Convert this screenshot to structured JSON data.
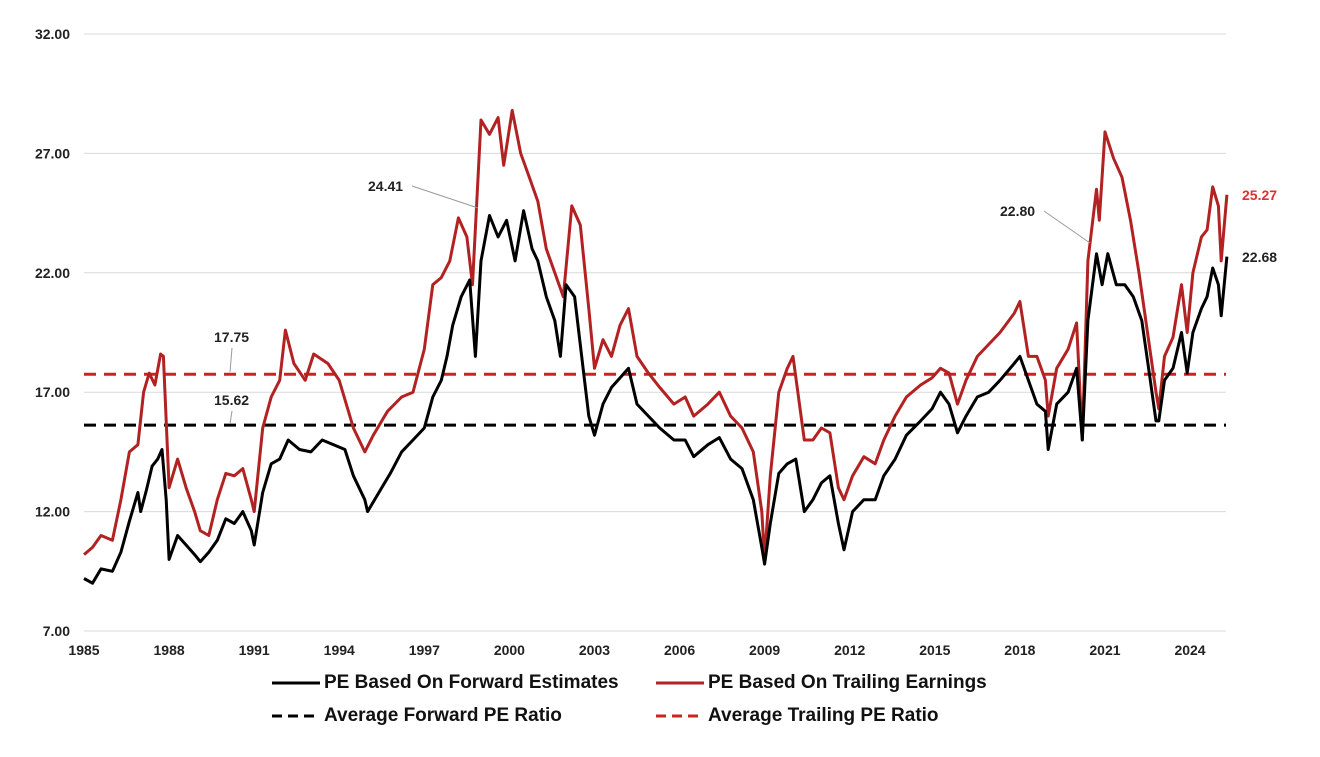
{
  "chart_data": {
    "type": "line",
    "title": "",
    "xlabel": "",
    "ylabel": "",
    "xlim": [
      1985,
      2025.5
    ],
    "ylim": [
      7,
      32
    ],
    "y_ticks": [
      "7.00",
      "12.00",
      "17.00",
      "22.00",
      "27.00",
      "32.00"
    ],
    "x_ticks": [
      "1985",
      "1988",
      "1991",
      "1994",
      "1997",
      "2000",
      "2003",
      "2006",
      "2009",
      "2012",
      "2015",
      "2018",
      "2021",
      "2024"
    ],
    "grid": "horizontal",
    "legend_position": "bottom",
    "colors": {
      "forward": "#000000",
      "trailing": "#b22222",
      "trailing_label": "#e03030"
    },
    "series": [
      {
        "name": "PE Based On Forward Estimates",
        "style": "solid",
        "color": "#000000",
        "points": [
          [
            1985.0,
            9.2
          ],
          [
            1985.3,
            9.0
          ],
          [
            1985.6,
            9.6
          ],
          [
            1986.0,
            9.5
          ],
          [
            1986.3,
            10.3
          ],
          [
            1986.6,
            11.6
          ],
          [
            1986.9,
            12.8
          ],
          [
            1987.0,
            12.0
          ],
          [
            1987.2,
            12.9
          ],
          [
            1987.4,
            13.9
          ],
          [
            1987.6,
            14.2
          ],
          [
            1987.75,
            14.6
          ],
          [
            1987.9,
            12.5
          ],
          [
            1988.0,
            10.0
          ],
          [
            1988.3,
            11.0
          ],
          [
            1988.6,
            10.6
          ],
          [
            1988.9,
            10.2
          ],
          [
            1989.1,
            9.9
          ],
          [
            1989.4,
            10.3
          ],
          [
            1989.7,
            10.8
          ],
          [
            1990.0,
            11.7
          ],
          [
            1990.3,
            11.5
          ],
          [
            1990.6,
            12.0
          ],
          [
            1990.9,
            11.2
          ],
          [
            1991.0,
            10.6
          ],
          [
            1991.3,
            12.8
          ],
          [
            1991.6,
            14.0
          ],
          [
            1991.9,
            14.2
          ],
          [
            1992.2,
            15.0
          ],
          [
            1992.6,
            14.6
          ],
          [
            1993.0,
            14.5
          ],
          [
            1993.4,
            15.0
          ],
          [
            1993.8,
            14.8
          ],
          [
            1994.2,
            14.6
          ],
          [
            1994.5,
            13.5
          ],
          [
            1994.9,
            12.5
          ],
          [
            1995.0,
            12.0
          ],
          [
            1995.4,
            12.8
          ],
          [
            1995.8,
            13.6
          ],
          [
            1996.2,
            14.5
          ],
          [
            1996.6,
            15.0
          ],
          [
            1997.0,
            15.5
          ],
          [
            1997.3,
            16.8
          ],
          [
            1997.6,
            17.5
          ],
          [
            1997.8,
            18.5
          ],
          [
            1998.0,
            19.8
          ],
          [
            1998.3,
            21.0
          ],
          [
            1998.6,
            21.7
          ],
          [
            1998.8,
            18.5
          ],
          [
            1999.0,
            22.5
          ],
          [
            1999.3,
            24.4
          ],
          [
            1999.6,
            23.5
          ],
          [
            1999.9,
            24.2
          ],
          [
            2000.2,
            22.5
          ],
          [
            2000.5,
            24.6
          ],
          [
            2000.8,
            23.0
          ],
          [
            2001.0,
            22.5
          ],
          [
            2001.3,
            21.0
          ],
          [
            2001.6,
            20.0
          ],
          [
            2001.8,
            18.5
          ],
          [
            2002.0,
            21.5
          ],
          [
            2002.3,
            21.0
          ],
          [
            2002.6,
            18.0
          ],
          [
            2002.8,
            16.0
          ],
          [
            2003.0,
            15.2
          ],
          [
            2003.3,
            16.5
          ],
          [
            2003.6,
            17.2
          ],
          [
            2003.9,
            17.6
          ],
          [
            2004.2,
            18.0
          ],
          [
            2004.5,
            16.5
          ],
          [
            2004.9,
            16.0
          ],
          [
            2005.3,
            15.5
          ],
          [
            2005.8,
            15.0
          ],
          [
            2006.2,
            15.0
          ],
          [
            2006.5,
            14.3
          ],
          [
            2007.0,
            14.8
          ],
          [
            2007.4,
            15.1
          ],
          [
            2007.8,
            14.2
          ],
          [
            2008.2,
            13.8
          ],
          [
            2008.6,
            12.5
          ],
          [
            2008.9,
            10.5
          ],
          [
            2009.0,
            9.8
          ],
          [
            2009.2,
            11.5
          ],
          [
            2009.5,
            13.6
          ],
          [
            2009.8,
            14.0
          ],
          [
            2010.1,
            14.2
          ],
          [
            2010.4,
            12.0
          ],
          [
            2010.7,
            12.5
          ],
          [
            2011.0,
            13.2
          ],
          [
            2011.3,
            13.5
          ],
          [
            2011.6,
            11.5
          ],
          [
            2011.8,
            10.4
          ],
          [
            2012.1,
            12.0
          ],
          [
            2012.5,
            12.5
          ],
          [
            2012.9,
            12.5
          ],
          [
            2013.2,
            13.5
          ],
          [
            2013.6,
            14.2
          ],
          [
            2014.0,
            15.2
          ],
          [
            2014.5,
            15.8
          ],
          [
            2014.9,
            16.3
          ],
          [
            2015.2,
            17.0
          ],
          [
            2015.5,
            16.5
          ],
          [
            2015.8,
            15.3
          ],
          [
            2016.1,
            16.0
          ],
          [
            2016.5,
            16.8
          ],
          [
            2016.9,
            17.0
          ],
          [
            2017.3,
            17.5
          ],
          [
            2017.8,
            18.2
          ],
          [
            2018.0,
            18.5
          ],
          [
            2018.3,
            17.5
          ],
          [
            2018.6,
            16.5
          ],
          [
            2018.9,
            16.2
          ],
          [
            2019.0,
            14.6
          ],
          [
            2019.3,
            16.5
          ],
          [
            2019.7,
            17.0
          ],
          [
            2020.0,
            18.0
          ],
          [
            2020.2,
            15.0
          ],
          [
            2020.4,
            20.0
          ],
          [
            2020.7,
            22.8
          ],
          [
            2020.9,
            21.5
          ],
          [
            2021.1,
            22.8
          ],
          [
            2021.4,
            21.5
          ],
          [
            2021.7,
            21.5
          ],
          [
            2022.0,
            21.0
          ],
          [
            2022.3,
            20.0
          ],
          [
            2022.6,
            17.5
          ],
          [
            2022.8,
            15.8
          ],
          [
            2022.9,
            15.8
          ],
          [
            2023.1,
            17.5
          ],
          [
            2023.4,
            18.0
          ],
          [
            2023.7,
            19.5
          ],
          [
            2023.9,
            17.8
          ],
          [
            2024.1,
            19.5
          ],
          [
            2024.4,
            20.5
          ],
          [
            2024.6,
            21.0
          ],
          [
            2024.8,
            22.2
          ],
          [
            2025.0,
            21.5
          ],
          [
            2025.1,
            20.2
          ],
          [
            2025.3,
            22.68
          ]
        ]
      },
      {
        "name": "PE Based On Trailing Earnings",
        "style": "solid",
        "color": "#b22222",
        "points": [
          [
            1985.0,
            10.2
          ],
          [
            1985.3,
            10.5
          ],
          [
            1985.6,
            11.0
          ],
          [
            1986.0,
            10.8
          ],
          [
            1986.3,
            12.5
          ],
          [
            1986.6,
            14.5
          ],
          [
            1986.9,
            14.8
          ],
          [
            1987.1,
            17.0
          ],
          [
            1987.3,
            17.8
          ],
          [
            1987.5,
            17.3
          ],
          [
            1987.7,
            18.6
          ],
          [
            1987.8,
            18.5
          ],
          [
            1988.0,
            13.0
          ],
          [
            1988.3,
            14.2
          ],
          [
            1988.6,
            13.0
          ],
          [
            1988.9,
            12.0
          ],
          [
            1989.1,
            11.2
          ],
          [
            1989.4,
            11.0
          ],
          [
            1989.7,
            12.5
          ],
          [
            1990.0,
            13.6
          ],
          [
            1990.3,
            13.5
          ],
          [
            1990.6,
            13.8
          ],
          [
            1990.9,
            12.5
          ],
          [
            1991.0,
            12.0
          ],
          [
            1991.3,
            15.5
          ],
          [
            1991.6,
            16.8
          ],
          [
            1991.9,
            17.5
          ],
          [
            1992.1,
            19.6
          ],
          [
            1992.4,
            18.2
          ],
          [
            1992.8,
            17.5
          ],
          [
            1993.1,
            18.6
          ],
          [
            1993.6,
            18.2
          ],
          [
            1994.0,
            17.5
          ],
          [
            1994.5,
            15.5
          ],
          [
            1994.9,
            14.5
          ],
          [
            1995.2,
            15.2
          ],
          [
            1995.7,
            16.2
          ],
          [
            1996.2,
            16.8
          ],
          [
            1996.6,
            17.0
          ],
          [
            1997.0,
            18.8
          ],
          [
            1997.3,
            21.5
          ],
          [
            1997.6,
            21.8
          ],
          [
            1997.9,
            22.5
          ],
          [
            1998.2,
            24.3
          ],
          [
            1998.5,
            23.5
          ],
          [
            1998.7,
            21.5
          ],
          [
            1999.0,
            28.4
          ],
          [
            1999.3,
            27.8
          ],
          [
            1999.6,
            28.5
          ],
          [
            1999.8,
            26.5
          ],
          [
            2000.1,
            28.8
          ],
          [
            2000.4,
            27.0
          ],
          [
            2000.7,
            26.0
          ],
          [
            2001.0,
            25.0
          ],
          [
            2001.3,
            23.0
          ],
          [
            2001.6,
            22.0
          ],
          [
            2001.9,
            21.0
          ],
          [
            2002.2,
            24.8
          ],
          [
            2002.5,
            24.0
          ],
          [
            2002.8,
            20.5
          ],
          [
            2003.0,
            18.0
          ],
          [
            2003.3,
            19.2
          ],
          [
            2003.6,
            18.5
          ],
          [
            2003.9,
            19.8
          ],
          [
            2004.2,
            20.5
          ],
          [
            2004.5,
            18.5
          ],
          [
            2004.9,
            17.8
          ],
          [
            2005.3,
            17.2
          ],
          [
            2005.8,
            16.5
          ],
          [
            2006.2,
            16.8
          ],
          [
            2006.5,
            16.0
          ],
          [
            2007.0,
            16.5
          ],
          [
            2007.4,
            17.0
          ],
          [
            2007.8,
            16.0
          ],
          [
            2008.2,
            15.5
          ],
          [
            2008.6,
            14.5
          ],
          [
            2008.9,
            12.0
          ],
          [
            2009.0,
            10.0
          ],
          [
            2009.2,
            13.5
          ],
          [
            2009.5,
            17.0
          ],
          [
            2009.8,
            18.0
          ],
          [
            2010.0,
            18.5
          ],
          [
            2010.4,
            15.0
          ],
          [
            2010.7,
            15.0
          ],
          [
            2011.0,
            15.5
          ],
          [
            2011.3,
            15.3
          ],
          [
            2011.6,
            13.0
          ],
          [
            2011.8,
            12.5
          ],
          [
            2012.1,
            13.5
          ],
          [
            2012.5,
            14.3
          ],
          [
            2012.9,
            14.0
          ],
          [
            2013.2,
            15.0
          ],
          [
            2013.6,
            16.0
          ],
          [
            2014.0,
            16.8
          ],
          [
            2014.5,
            17.3
          ],
          [
            2014.9,
            17.6
          ],
          [
            2015.2,
            18.0
          ],
          [
            2015.5,
            17.8
          ],
          [
            2015.8,
            16.5
          ],
          [
            2016.1,
            17.5
          ],
          [
            2016.5,
            18.5
          ],
          [
            2016.9,
            19.0
          ],
          [
            2017.3,
            19.5
          ],
          [
            2017.8,
            20.3
          ],
          [
            2018.0,
            20.8
          ],
          [
            2018.3,
            18.5
          ],
          [
            2018.6,
            18.5
          ],
          [
            2018.9,
            17.5
          ],
          [
            2019.0,
            16.0
          ],
          [
            2019.3,
            18.0
          ],
          [
            2019.7,
            18.8
          ],
          [
            2020.0,
            19.9
          ],
          [
            2020.2,
            15.0
          ],
          [
            2020.4,
            22.5
          ],
          [
            2020.7,
            25.5
          ],
          [
            2020.8,
            24.2
          ],
          [
            2021.0,
            27.9
          ],
          [
            2021.3,
            26.8
          ],
          [
            2021.6,
            26.0
          ],
          [
            2021.9,
            24.2
          ],
          [
            2022.2,
            22.0
          ],
          [
            2022.5,
            19.5
          ],
          [
            2022.8,
            17.0
          ],
          [
            2022.9,
            16.3
          ],
          [
            2023.1,
            18.5
          ],
          [
            2023.4,
            19.3
          ],
          [
            2023.7,
            21.5
          ],
          [
            2023.9,
            19.5
          ],
          [
            2024.1,
            22.0
          ],
          [
            2024.4,
            23.5
          ],
          [
            2024.6,
            23.8
          ],
          [
            2024.8,
            25.6
          ],
          [
            2025.0,
            24.8
          ],
          [
            2025.1,
            22.5
          ],
          [
            2025.3,
            25.27
          ]
        ]
      },
      {
        "name": "Average Forward PE Ratio",
        "style": "dashed",
        "color": "#000000",
        "value": 15.62
      },
      {
        "name": "Average Trailing PE Ratio",
        "style": "dashed",
        "color": "#cc2222",
        "value": 17.75
      }
    ],
    "annotations": [
      {
        "text": "24.41",
        "x": 1999.3,
        "y": 24.41
      },
      {
        "text": "22.80",
        "x": 2020.7,
        "y": 22.8
      },
      {
        "text": "17.75",
        "x": 1990.0,
        "y": 17.75
      },
      {
        "text": "15.62",
        "x": 1990.0,
        "y": 15.62
      },
      {
        "text": "25.27",
        "x": 2025.3,
        "y": 25.27,
        "color": "#e03030"
      },
      {
        "text": "22.68",
        "x": 2025.3,
        "y": 22.68
      }
    ]
  }
}
